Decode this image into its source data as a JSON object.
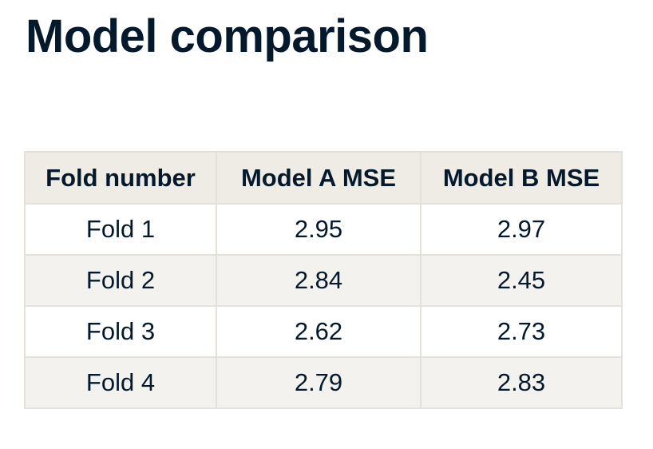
{
  "title": "Model comparison",
  "table": {
    "headers": [
      "Fold number",
      "Model A MSE",
      "Model B MSE"
    ],
    "rows": [
      [
        "Fold 1",
        "2.95",
        "2.97"
      ],
      [
        "Fold 2",
        "2.84",
        "2.45"
      ],
      [
        "Fold 3",
        "2.62",
        "2.73"
      ],
      [
        "Fold 4",
        "2.79",
        "2.83"
      ]
    ]
  },
  "colors": {
    "text": "#05192d",
    "header_bg": "#efece6",
    "alt_row_bg": "#f4f2ee",
    "border": "#e5e1da"
  }
}
